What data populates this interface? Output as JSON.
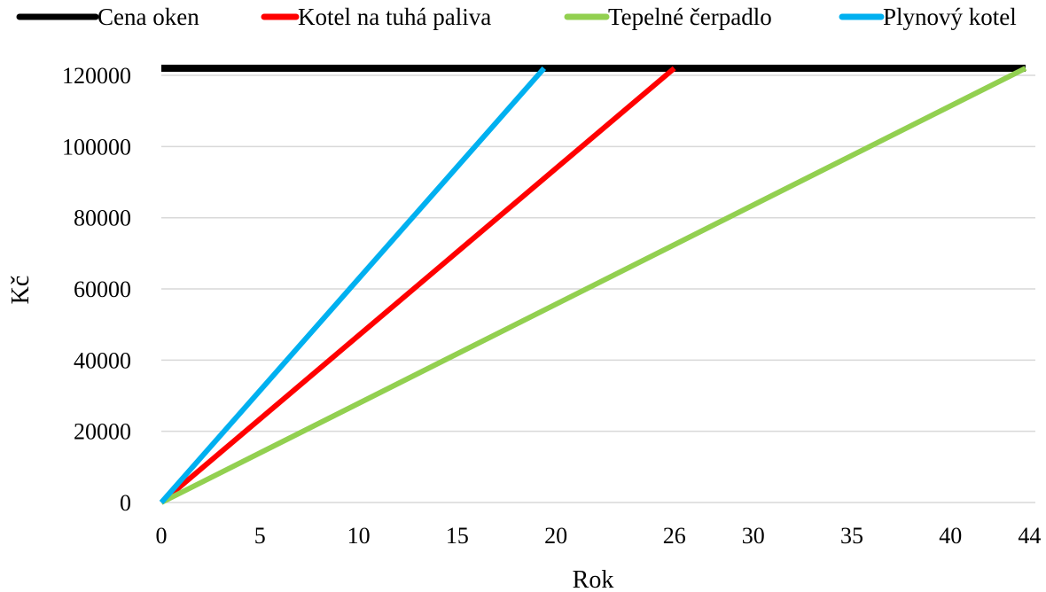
{
  "chart_data": {
    "type": "line",
    "title": "",
    "xlabel": "Rok",
    "ylabel": "Kč",
    "xlim": [
      0,
      44.3
    ],
    "ylim": [
      0,
      122000
    ],
    "x_ticks": [
      0,
      5,
      10,
      15,
      20,
      26,
      30,
      35,
      40,
      44
    ],
    "y_ticks": [
      0,
      20000,
      40000,
      60000,
      80000,
      100000,
      120000
    ],
    "grid": "horizontal",
    "legend_position": "top",
    "series": [
      {
        "name": "Cena oken",
        "color": "#000000",
        "x": [
          0,
          43.8
        ],
        "y": [
          122000,
          122000
        ]
      },
      {
        "name": "Kotel na tuhá paliva",
        "color": "#ff0000",
        "x": [
          0,
          26
        ],
        "y": [
          0,
          122000
        ]
      },
      {
        "name": "Tepelné čerpadlo",
        "color": "#92d050",
        "x": [
          0,
          43.8
        ],
        "y": [
          0,
          122000
        ]
      },
      {
        "name": "Plynový kotel",
        "color": "#00b0f0",
        "x": [
          0,
          19.4
        ],
        "y": [
          0,
          122000
        ]
      }
    ]
  }
}
